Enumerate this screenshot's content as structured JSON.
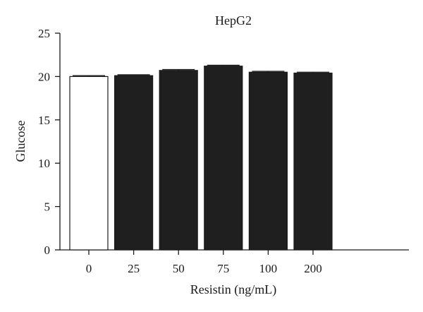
{
  "chart_data": {
    "type": "bar",
    "title": "HepG2",
    "xlabel": "Resistin (ng/mL)",
    "ylabel": "Glucose",
    "ylim": [
      0,
      25
    ],
    "yticks": [
      0,
      5,
      10,
      15,
      20,
      25
    ],
    "categories": [
      "0",
      "25",
      "50",
      "75",
      "100",
      "200"
    ],
    "values": [
      20.0,
      20.1,
      20.7,
      21.2,
      20.5,
      20.4
    ],
    "errors": [
      0.1,
      0.1,
      0.1,
      0.1,
      0.1,
      0.1
    ],
    "bar_fills": [
      "#ffffff",
      "#1f1f1f",
      "#1f1f1f",
      "#1f1f1f",
      "#1f1f1f",
      "#1f1f1f"
    ],
    "bar_stroke": "#1a1a1a",
    "grid": false,
    "legend": "none"
  }
}
